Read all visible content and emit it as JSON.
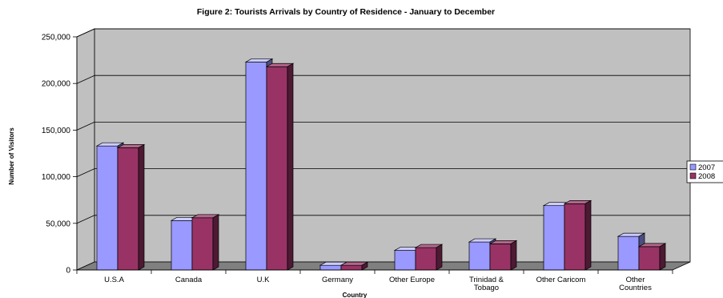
{
  "chart_data": {
    "type": "bar",
    "title": "Figure 2: Tourists Arrivals by Country of Residence - January to December",
    "xlabel": "Country",
    "ylabel": "Number of Visitors",
    "ylim": [
      0,
      250000
    ],
    "yticks": [
      "0",
      "50,000",
      "100,000",
      "150,000",
      "200,000",
      "250,000"
    ],
    "categories": [
      [
        "U.S.A"
      ],
      [
        "Canada"
      ],
      [
        "U.K"
      ],
      [
        "Germany"
      ],
      [
        "Other Europe"
      ],
      [
        "Trinidad &",
        "Tobago"
      ],
      [
        "Other Caricom"
      ],
      [
        "Other",
        "Countries"
      ]
    ],
    "series": [
      {
        "name": "2007",
        "values": [
          133000,
          53000,
          223000,
          5000,
          21000,
          30000,
          69000,
          36000
        ]
      },
      {
        "name": "2008",
        "values": [
          131000,
          56000,
          218000,
          5000,
          24000,
          28000,
          71000,
          25000
        ]
      }
    ],
    "grid": true,
    "legend_position": "right",
    "colors": {
      "series_front": [
        "#9999ff",
        "#993366"
      ],
      "series_top": [
        "#ccccff",
        "#b3668a"
      ],
      "series_side": [
        "#4d4d80",
        "#4d1a33"
      ],
      "wall": "#c0c0c0",
      "floor": "#808080",
      "gridline": "#000000"
    }
  }
}
